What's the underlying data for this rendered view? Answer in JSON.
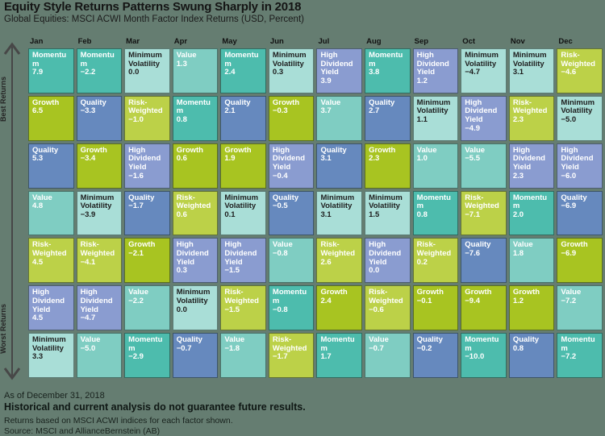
{
  "header": {
    "title": "Equity Style Returns Patterns Swung Sharply in 2018",
    "subtitle": "Global Equities: MSCI ACWI Month Factor Index Returns (USD, Percent)"
  },
  "y_axis": {
    "top_label": "Best Returns",
    "bottom_label": "Worst Returns"
  },
  "footer": {
    "as_of": "As of December 31, 2018",
    "disclaimer": "Historical and current analysis do not guarantee future results.",
    "note": "Returns based on MSCI ACWI indices for each factor shown.",
    "source": "Source: MSCI and AllianceBernstein (AB)"
  },
  "colors": {
    "background": "#657D71",
    "factor_colors": {
      "Momentum": {
        "bg": "#4DBCAD",
        "text": "#FFFFFF"
      },
      "Growth": {
        "bg": "#A8C421",
        "text": "#FFFFFF"
      },
      "Quality": {
        "bg": "#6689BE",
        "text": "#FFFFFF"
      },
      "Value": {
        "bg": "#7FCDC2",
        "text": "#FFFFFF"
      },
      "Risk-Weighted": {
        "bg": "#BCD148",
        "text": "#FFFFFF"
      },
      "High Dividend Yield": {
        "bg": "#8A9CD0",
        "text": "#FFFFFF"
      },
      "Minimum Volatility": {
        "bg": "#A9DED7",
        "text": "#1E1E1E"
      }
    }
  },
  "chart_data": {
    "type": "heatmap",
    "title": "Equity Style Returns Patterns Swung Sharply in 2018",
    "subtitle": "Global Equities: MSCI ACWI Month Factor Index Returns (USD, Percent)",
    "row_order": "each column ranked from best return (top) to worst return (bottom)",
    "units": "USD, Percent",
    "columns": [
      {
        "month": "Jan",
        "ranked": [
          {
            "factor": "Momentum",
            "value": 7.9
          },
          {
            "factor": "Growth",
            "value": 6.5
          },
          {
            "factor": "Quality",
            "value": 5.3
          },
          {
            "factor": "Value",
            "value": 4.8
          },
          {
            "factor": "Risk-Weighted",
            "value": 4.5
          },
          {
            "factor": "High Dividend Yield",
            "value": 4.5
          },
          {
            "factor": "Minimum Volatility",
            "value": 3.3
          }
        ]
      },
      {
        "month": "Feb",
        "ranked": [
          {
            "factor": "Momentum",
            "value": -2.2
          },
          {
            "factor": "Quality",
            "value": -3.3
          },
          {
            "factor": "Growth",
            "value": -3.4
          },
          {
            "factor": "Minimum Volatility",
            "value": -3.9
          },
          {
            "factor": "Risk-Weighted",
            "value": -4.1
          },
          {
            "factor": "High Dividend Yield",
            "value": -4.7
          },
          {
            "factor": "Value",
            "value": -5.0
          }
        ]
      },
      {
        "month": "Mar",
        "ranked": [
          {
            "factor": "Minimum Volatility",
            "value": 0.0
          },
          {
            "factor": "Risk-Weighted",
            "value": -1.0
          },
          {
            "factor": "High Dividend Yield",
            "value": -1.6
          },
          {
            "factor": "Quality",
            "value": -1.7
          },
          {
            "factor": "Growth",
            "value": -2.1
          },
          {
            "factor": "Value",
            "value": -2.2
          },
          {
            "factor": "Momentum",
            "value": -2.9
          }
        ]
      },
      {
        "month": "Apr",
        "ranked": [
          {
            "factor": "Value",
            "value": 1.3
          },
          {
            "factor": "Momentum",
            "value": 0.8
          },
          {
            "factor": "Growth",
            "value": 0.6
          },
          {
            "factor": "Risk-Weighted",
            "value": 0.6
          },
          {
            "factor": "High Dividend Yield",
            "value": 0.3
          },
          {
            "factor": "Minimum Volatility",
            "value": 0.0
          },
          {
            "factor": "Quality",
            "value": -0.7
          }
        ]
      },
      {
        "month": "May",
        "ranked": [
          {
            "factor": "Momentum",
            "value": 2.4
          },
          {
            "factor": "Quality",
            "value": 2.1
          },
          {
            "factor": "Growth",
            "value": 1.9
          },
          {
            "factor": "Minimum Volatility",
            "value": 0.1
          },
          {
            "factor": "High Dividend Yield",
            "value": -1.5
          },
          {
            "factor": "Risk-Weighted",
            "value": -1.5
          },
          {
            "factor": "Value",
            "value": -1.8
          }
        ]
      },
      {
        "month": "Jun",
        "ranked": [
          {
            "factor": "Minimum Volatility",
            "value": 0.3
          },
          {
            "factor": "Growth",
            "value": -0.3
          },
          {
            "factor": "High Dividend Yield",
            "value": -0.4
          },
          {
            "factor": "Quality",
            "value": -0.5
          },
          {
            "factor": "Value",
            "value": -0.8
          },
          {
            "factor": "Momentum",
            "value": -0.8
          },
          {
            "factor": "Risk-Weighted",
            "value": -1.7
          }
        ]
      },
      {
        "month": "Jul",
        "ranked": [
          {
            "factor": "High Dividend Yield",
            "value": 3.9
          },
          {
            "factor": "Value",
            "value": 3.7
          },
          {
            "factor": "Quality",
            "value": 3.1
          },
          {
            "factor": "Minimum Volatility",
            "value": 3.1
          },
          {
            "factor": "Risk-Weighted",
            "value": 2.6
          },
          {
            "factor": "Growth",
            "value": 2.4
          },
          {
            "factor": "Momentum",
            "value": 1.7
          }
        ]
      },
      {
        "month": "Aug",
        "ranked": [
          {
            "factor": "Momentum",
            "value": 3.8
          },
          {
            "factor": "Quality",
            "value": 2.7
          },
          {
            "factor": "Growth",
            "value": 2.3
          },
          {
            "factor": "Minimum Volatility",
            "value": 1.5
          },
          {
            "factor": "High Dividend Yield",
            "value": 0.0
          },
          {
            "factor": "Risk-Weighted",
            "value": -0.6
          },
          {
            "factor": "Value",
            "value": -0.7
          }
        ]
      },
      {
        "month": "Sep",
        "ranked": [
          {
            "factor": "High Dividend Yield",
            "value": 1.2
          },
          {
            "factor": "Minimum Volatility",
            "value": 1.1
          },
          {
            "factor": "Value",
            "value": 1.0
          },
          {
            "factor": "Momentum",
            "value": 0.8
          },
          {
            "factor": "Risk-Weighted",
            "value": 0.2
          },
          {
            "factor": "Growth",
            "value": -0.1
          },
          {
            "factor": "Quality",
            "value": -0.2
          }
        ]
      },
      {
        "month": "Oct",
        "ranked": [
          {
            "factor": "Minimum Volatility",
            "value": -4.7
          },
          {
            "factor": "High Dividend Yield",
            "value": -4.9
          },
          {
            "factor": "Value",
            "value": -5.5
          },
          {
            "factor": "Risk-Weighted",
            "value": -7.1
          },
          {
            "factor": "Quality",
            "value": -7.6
          },
          {
            "factor": "Growth",
            "value": -9.4
          },
          {
            "factor": "Momentum",
            "value": -10.0
          }
        ]
      },
      {
        "month": "Nov",
        "ranked": [
          {
            "factor": "Minimum Volatility",
            "value": 3.1
          },
          {
            "factor": "Risk-Weighted",
            "value": 2.3
          },
          {
            "factor": "High Dividend Yield",
            "value": 2.3
          },
          {
            "factor": "Momentum",
            "value": 2.0
          },
          {
            "factor": "Value",
            "value": 1.8
          },
          {
            "factor": "Growth",
            "value": 1.2
          },
          {
            "factor": "Quality",
            "value": 0.8
          }
        ]
      },
      {
        "month": "Dec",
        "ranked": [
          {
            "factor": "Risk-Weighted",
            "value": -4.6
          },
          {
            "factor": "Minimum Volatility",
            "value": -5.0
          },
          {
            "factor": "High Dividend Yield",
            "value": -6.0
          },
          {
            "factor": "Quality",
            "value": -6.9
          },
          {
            "factor": "Growth",
            "value": -6.9
          },
          {
            "factor": "Value",
            "value": -7.2
          },
          {
            "factor": "Momentum",
            "value": -7.2
          }
        ]
      }
    ]
  }
}
